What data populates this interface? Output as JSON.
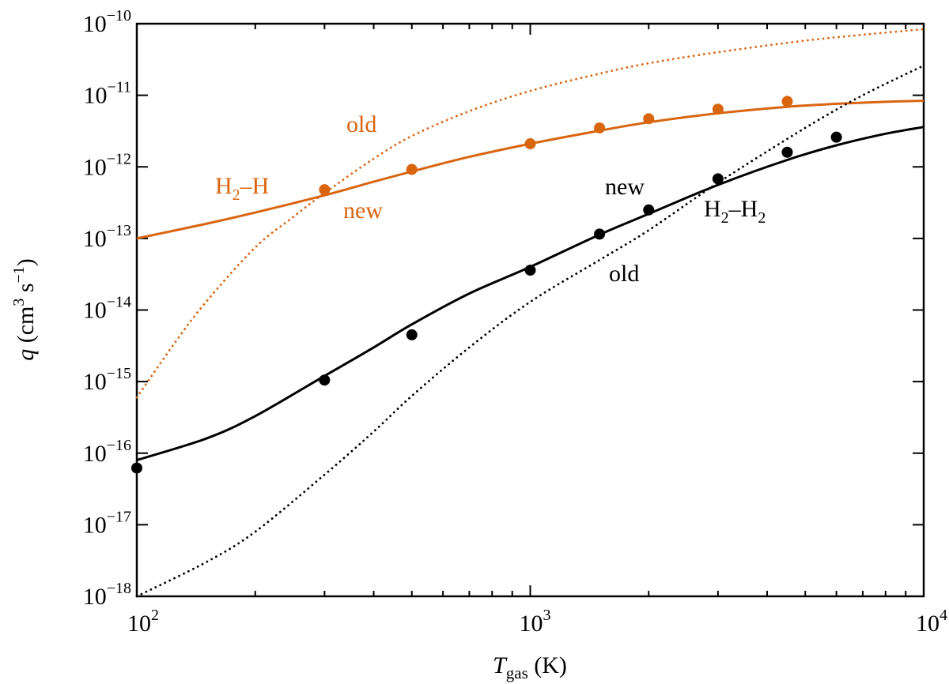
{
  "chart_data": {
    "type": "line",
    "xscale": "log",
    "yscale": "log",
    "xlim": [
      100,
      10000
    ],
    "ylim": [
      1e-18,
      1e-10
    ],
    "xlabel": {
      "var": "T",
      "sub": "gas",
      "unit": " (K)"
    },
    "ylabel": {
      "var": "q",
      "unit_pre": " (cm",
      "unit_sup1": "3",
      "unit_mid": " s",
      "unit_sup2": "−1",
      "unit_post": ")"
    },
    "xticks": [
      {
        "value": 100,
        "base": "10",
        "exp": "2"
      },
      {
        "value": 1000,
        "base": "10",
        "exp": "3"
      },
      {
        "value": 10000,
        "base": "10",
        "exp": "4"
      }
    ],
    "yticks": [
      {
        "value": 1e-10,
        "base": "10",
        "exp": "−10"
      },
      {
        "value": 1e-11,
        "base": "10",
        "exp": "−11"
      },
      {
        "value": 1e-12,
        "base": "10",
        "exp": "−12"
      },
      {
        "value": 1e-13,
        "base": "10",
        "exp": "−13"
      },
      {
        "value": 1e-14,
        "base": "10",
        "exp": "−14"
      },
      {
        "value": 1e-15,
        "base": "10",
        "exp": "−15"
      },
      {
        "value": 1e-16,
        "base": "10",
        "exp": "−16"
      },
      {
        "value": 1e-17,
        "base": "10",
        "exp": "−17"
      },
      {
        "value": 1e-18,
        "base": "10",
        "exp": "−18"
      }
    ],
    "series": [
      {
        "name": "H2-H new",
        "color": "#d9650f",
        "style": "solid",
        "x": [
          100,
          150,
          200,
          300,
          400,
          500,
          700,
          1000,
          1500,
          2000,
          3000,
          4500,
          6000,
          8000,
          10000
        ],
        "y": [
          1e-13,
          1.6e-13,
          2.3e-13,
          4e-13,
          6.2e-13,
          8.6e-13,
          1.38e-12,
          2.1e-12,
          3.2e-12,
          4.2e-12,
          5.6e-12,
          6.9e-12,
          7.6e-12,
          8.1e-12,
          8.4e-12
        ]
      },
      {
        "name": "H2-H old",
        "color": "#d9650f",
        "style": "dotted",
        "x": [
          100,
          125,
          150,
          200,
          250,
          300,
          400,
          500,
          700,
          1000,
          1500,
          2000,
          3000,
          5000,
          7000,
          10000
        ],
        "y": [
          6e-16,
          3.5e-15,
          1.3e-14,
          7.5e-14,
          2e-13,
          4.3e-13,
          1.3e-12,
          2.7e-12,
          6e-12,
          1.15e-11,
          2e-11,
          2.8e-11,
          4e-11,
          5.8e-11,
          7e-11,
          8.4e-11
        ]
      },
      {
        "name": "H2-H2 new",
        "color": "#000000",
        "style": "solid",
        "x": [
          100,
          150,
          200,
          300,
          400,
          500,
          700,
          1000,
          1500,
          2000,
          3000,
          4500,
          6000,
          8000,
          10000
        ],
        "y": [
          8e-17,
          1.6e-16,
          3.3e-16,
          1.2e-15,
          3e-15,
          6.3e-15,
          1.7e-14,
          4e-14,
          1.13e-13,
          2.2e-13,
          5.6e-13,
          1.25e-12,
          2e-12,
          2.9e-12,
          3.6e-12
        ]
      },
      {
        "name": "H2-H2 old",
        "color": "#000000",
        "style": "dotted",
        "x": [
          100,
          150,
          200,
          300,
          400,
          500,
          700,
          1000,
          1500,
          2000,
          3000,
          5000,
          7000,
          10000
        ],
        "y": [
          1e-18,
          3e-18,
          8e-18,
          5e-17,
          2e-16,
          6.3e-16,
          3e-15,
          1.3e-14,
          5e-14,
          1.3e-13,
          6e-13,
          3.5e-12,
          1e-11,
          2.6e-11
        ]
      }
    ],
    "points": [
      {
        "name": "H2-H data",
        "color": "#d9650f",
        "x": [
          300,
          500,
          1000,
          1500,
          2000,
          3000,
          4500
        ],
        "y": [
          4.8e-13,
          9.2e-13,
          2.1e-12,
          3.5e-12,
          4.7e-12,
          6.4e-12,
          8.2e-12
        ]
      },
      {
        "name": "H2-H2 data",
        "color": "#000000",
        "x": [
          100,
          300,
          500,
          1000,
          1500,
          2000,
          3000,
          4500,
          6000
        ],
        "y": [
          6.2e-17,
          1.05e-15,
          4.5e-15,
          3.6e-14,
          1.15e-13,
          2.5e-13,
          6.8e-13,
          1.6e-12,
          2.6e-12
        ]
      }
    ],
    "annotations": [
      {
        "key": "old_orange",
        "text": "old",
        "color": "#d9650f"
      },
      {
        "key": "h2h",
        "pre": "H",
        "sub": "2",
        "post": "–H",
        "color": "#d9650f"
      },
      {
        "key": "new_orange",
        "text": "new",
        "color": "#d9650f"
      },
      {
        "key": "new_black",
        "text": "new",
        "color": "#000000"
      },
      {
        "key": "h2h2",
        "pre": "H",
        "sub": "2",
        "post": "–H",
        "sub2": "2",
        "color": "#000000"
      },
      {
        "key": "old_black",
        "text": "old",
        "color": "#000000"
      }
    ]
  }
}
